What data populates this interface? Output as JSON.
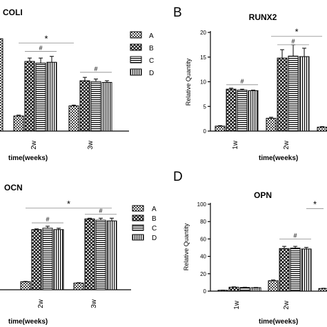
{
  "figure": {
    "legend": [
      {
        "label": "A",
        "pattern": "pat-check"
      },
      {
        "label": "B",
        "pattern": "pat-cross"
      },
      {
        "label": "C",
        "pattern": "pat-hstripe"
      },
      {
        "label": "D",
        "pattern": "pat-vstripe"
      }
    ]
  },
  "chart_data": [
    {
      "id": "coli",
      "type": "bar",
      "title": "COLI",
      "panel_letter": "",
      "xlabel": "time(weeks)",
      "ylabel": "",
      "ylim": [
        0,
        1.2
      ],
      "yticks": [],
      "categories": [
        "",
        "2w",
        "3w"
      ],
      "series": [
        {
          "name": "A",
          "pattern": "pat-check",
          "values": [
            null,
            0.18,
            0.3
          ],
          "errors": [
            null,
            0.01,
            0.01
          ]
        },
        {
          "name": "B",
          "pattern": "pat-cross",
          "values": [
            null,
            0.83,
            0.6
          ],
          "errors": [
            null,
            0.04,
            0.04
          ]
        },
        {
          "name": "C",
          "pattern": "pat-hstripe",
          "values": [
            null,
            0.81,
            0.59
          ],
          "errors": [
            null,
            0.06,
            0.03
          ]
        },
        {
          "name": "D",
          "pattern": "pat-vstripe",
          "values": [
            null,
            0.82,
            0.58
          ],
          "errors": [
            null,
            0.07,
            0.02
          ]
        }
      ],
      "partial_bar": {
        "value": 1.1
      },
      "annotations": [
        {
          "text": "#",
          "kind": "hash",
          "cat": 1,
          "from": 1,
          "to": 3,
          "value": 0.95
        },
        {
          "text": "*",
          "kind": "star",
          "start": {
            "cat": 1,
            "bar": 0
          },
          "end": {
            "cat": 2,
            "bar": 0
          },
          "value": 1.05
        },
        {
          "text": "#",
          "kind": "hash",
          "cat": 2,
          "from": 1,
          "to": 3,
          "value": 0.7
        }
      ]
    },
    {
      "id": "runx2",
      "type": "bar",
      "title": "RUNX2",
      "panel_letter": "B",
      "xlabel": "time(weeks)",
      "ylabel": "Relative Quantity",
      "ylim": [
        0,
        20
      ],
      "yticks": [
        0,
        5,
        10,
        15,
        20
      ],
      "categories": [
        "1w",
        "2w",
        ""
      ],
      "series": [
        {
          "name": "A",
          "pattern": "pat-check",
          "values": [
            1.0,
            2.6,
            0.8
          ],
          "errors": [
            0.1,
            0.2,
            0.1
          ]
        },
        {
          "name": "B",
          "pattern": "pat-cross",
          "values": [
            8.5,
            14.8,
            null
          ],
          "errors": [
            0.2,
            1.7,
            null
          ]
        },
        {
          "name": "C",
          "pattern": "pat-hstripe",
          "values": [
            8.3,
            15.2,
            null
          ],
          "errors": [
            0.2,
            2.3,
            null
          ]
        },
        {
          "name": "D",
          "pattern": "pat-vstripe",
          "values": [
            8.2,
            15.1,
            null
          ],
          "errors": [
            0.1,
            1.7,
            null
          ]
        }
      ],
      "annotations": [
        {
          "text": "#",
          "kind": "hash",
          "cat": 0,
          "from": 1,
          "to": 3,
          "value": 9.4
        },
        {
          "text": "#",
          "kind": "hash",
          "cat": 1,
          "from": 1,
          "to": 3,
          "value": 17.5
        },
        {
          "text": "*",
          "kind": "star",
          "start": {
            "cat": 1,
            "bar": 0
          },
          "end": {
            "cat": 2,
            "bar": 0
          },
          "value": 19.2
        }
      ]
    },
    {
      "id": "ocn",
      "type": "bar",
      "title": "OCN",
      "panel_letter": "",
      "xlabel": "time(weeks)",
      "ylabel": "",
      "ylim": [
        0,
        1.3
      ],
      "yticks": [],
      "categories": [
        "",
        "2w",
        "3w"
      ],
      "series": [
        {
          "name": "A",
          "pattern": "pat-check",
          "values": [
            0.1,
            0.12,
            0.1
          ],
          "errors": [
            0.005,
            0.005,
            0.005
          ]
        },
        {
          "name": "B",
          "pattern": "pat-cross",
          "values": [
            null,
            0.9,
            1.06
          ],
          "errors": [
            null,
            0.01,
            0.01
          ]
        },
        {
          "name": "C",
          "pattern": "pat-hstripe",
          "values": [
            null,
            0.92,
            1.04
          ],
          "errors": [
            null,
            0.03,
            0.03
          ]
        },
        {
          "name": "D",
          "pattern": "pat-vstripe",
          "values": [
            null,
            0.9,
            1.03
          ],
          "errors": [
            null,
            0.02,
            0.04
          ]
        }
      ],
      "annotations": [
        {
          "text": "#",
          "kind": "hash",
          "cat": 1,
          "from": 1,
          "to": 3,
          "value": 1.0
        },
        {
          "text": "#",
          "kind": "hash",
          "cat": 2,
          "from": 1,
          "to": 3,
          "value": 1.13
        },
        {
          "text": "*",
          "kind": "star",
          "start": {
            "cat": 1,
            "bar": 0
          },
          "end": {
            "cat": 2,
            "bar": 3
          },
          "value": 1.22
        }
      ]
    },
    {
      "id": "opn",
      "type": "bar",
      "title": "OPN",
      "panel_letter": "D",
      "xlabel": "time(weeks)",
      "ylabel": "Relative Quantity",
      "ylim": [
        0,
        100
      ],
      "yticks": [
        0,
        20,
        40,
        60,
        80,
        100
      ],
      "categories": [
        "1w",
        "2w",
        ""
      ],
      "series": [
        {
          "name": "A",
          "pattern": "pat-check",
          "values": [
            1.0,
            12.0,
            3.0
          ],
          "errors": [
            0.2,
            0.8,
            0.3
          ]
        },
        {
          "name": "B",
          "pattern": "pat-cross",
          "values": [
            4.5,
            49.0,
            null
          ],
          "errors": [
            0.4,
            2.5,
            null
          ]
        },
        {
          "name": "C",
          "pattern": "pat-hstripe",
          "values": [
            4.2,
            49.5,
            null
          ],
          "errors": [
            0.3,
            2.0,
            null
          ]
        },
        {
          "name": "D",
          "pattern": "pat-vstripe",
          "values": [
            4.0,
            48.5,
            null
          ],
          "errors": [
            0.3,
            1.8,
            null
          ]
        }
      ],
      "annotations": [
        {
          "text": "#",
          "kind": "hash",
          "cat": 1,
          "from": 1,
          "to": 3,
          "value": 60
        },
        {
          "text": "*",
          "kind": "star",
          "start": {
            "cat": 1,
            "bar": 3
          },
          "end": {
            "cat": 2,
            "bar": 0
          },
          "value": 95
        }
      ]
    }
  ]
}
